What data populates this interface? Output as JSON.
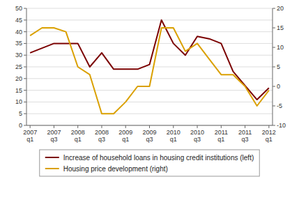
{
  "chart_data": {
    "type": "line",
    "categories": [
      "2007\nq1",
      null,
      "2007\nq3",
      null,
      "2008\nq1",
      null,
      "2008\nq3",
      null,
      "2009\nq1",
      null,
      "2009\nq3",
      null,
      "2010\nq1",
      null,
      "2010\nq3",
      null,
      "2011\nq1",
      null,
      "2011\nq3",
      null,
      "2012\nq1"
    ],
    "series": [
      {
        "name": "Increase of household loans in housing credit institutions (left)",
        "color": "#7B0000",
        "values": [
          31,
          33,
          35,
          35,
          35,
          25,
          31,
          24,
          24,
          24,
          26,
          45,
          35,
          30,
          38,
          37,
          35,
          23,
          17,
          11,
          16
        ]
      },
      {
        "name": "Housing price development (right)",
        "color": "#DAA000",
        "axis": "y2",
        "values": [
          13,
          15,
          15,
          14,
          5,
          3,
          -7,
          -7,
          -4,
          0,
          0,
          15,
          15,
          9,
          11,
          7,
          3,
          3,
          0,
          -5,
          -1
        ]
      }
    ],
    "ylim": [
      0,
      50
    ],
    "yticks": [
      0,
      5,
      10,
      15,
      20,
      25,
      30,
      35,
      40,
      45,
      50
    ],
    "y2lim": [
      -10,
      20
    ],
    "y2ticks": [
      -10,
      -5,
      0,
      5,
      10,
      15,
      20
    ],
    "grid": true,
    "legend": "bottom"
  }
}
